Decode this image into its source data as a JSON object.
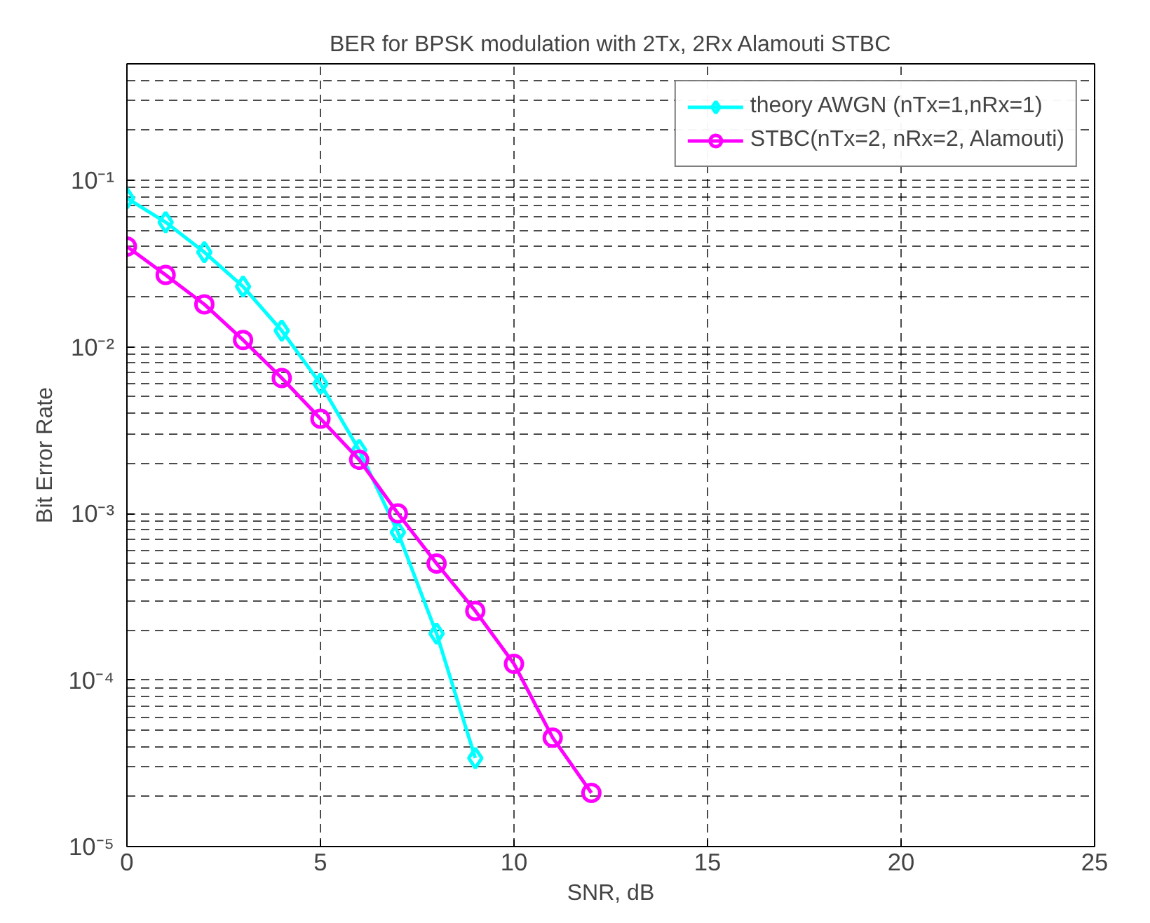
{
  "chart_data": {
    "type": "line",
    "title": "BER for BPSK modulation with 2Tx, 2Rx Alamouti STBC",
    "xlabel": "SNR, dB",
    "ylabel": "Bit Error Rate",
    "x": [
      0,
      1,
      2,
      3,
      4,
      5,
      6,
      7,
      8,
      9,
      10,
      11,
      12
    ],
    "series": [
      {
        "name": "theory AWGN (nTx=1,nRx=1)",
        "color": "#00ffff",
        "marker": "diamond",
        "values": [
          0.078,
          0.056,
          0.037,
          0.023,
          0.0125,
          0.006,
          0.0024,
          0.00077,
          0.00019,
          3.4e-05,
          null,
          null,
          null
        ]
      },
      {
        "name": "STBC(nTx=2, nRx=2, Alamouti)",
        "color": "#ff00ff",
        "marker": "circle",
        "values": [
          0.04,
          0.027,
          0.018,
          0.011,
          0.0065,
          0.0037,
          0.0021,
          0.001,
          0.0005,
          0.00026,
          0.000125,
          4.5e-05,
          2.1e-05
        ]
      }
    ],
    "log": "y",
    "xlim": [
      0,
      25
    ],
    "ylim": [
      1e-05,
      0.5
    ],
    "xticks": [
      0,
      5,
      10,
      15,
      20,
      25
    ],
    "yticks": [
      {
        "value": 1e-05,
        "label": "10⁻⁵"
      },
      {
        "value": 0.0001,
        "label": "10⁻⁴"
      },
      {
        "value": 0.001,
        "label": "10⁻³"
      },
      {
        "value": 0.01,
        "label": "10⁻²"
      },
      {
        "value": 0.1,
        "label": "10⁻¹"
      }
    ],
    "grid": true,
    "legend": "top right",
    "line_style": "solid"
  }
}
